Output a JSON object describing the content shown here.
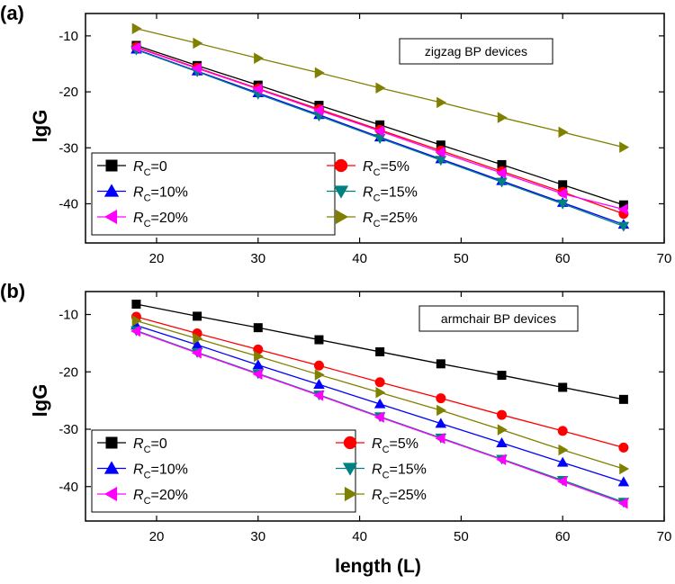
{
  "chart_data": [
    {
      "panel_label": "(a)",
      "type": "line",
      "annotation": "zigzag BP devices",
      "ylabel": "lgG",
      "xlabel": "",
      "xlim": [
        13,
        70
      ],
      "ylim": [
        -47,
        -6
      ],
      "xticks": [
        20,
        30,
        40,
        50,
        60,
        70
      ],
      "yticks": [
        -10,
        -20,
        -30,
        -40
      ],
      "x": [
        18,
        24,
        30,
        36,
        42,
        48,
        54,
        60,
        66
      ],
      "series": [
        {
          "name": "RC=0",
          "label_prefix": "R",
          "label_sub": "C",
          "label_value": "=0",
          "color": "#000000",
          "marker": "square",
          "values": [
            -11.7,
            -15.3,
            -18.8,
            -22.4,
            -25.9,
            -29.5,
            -33.0,
            -36.6,
            -40.2
          ]
        },
        {
          "name": "RC=5%",
          "label_prefix": "R",
          "label_sub": "C",
          "label_value": "=5%",
          "color": "#ff0000",
          "marker": "circle",
          "values": [
            -12.0,
            -15.7,
            -19.4,
            -23.1,
            -26.8,
            -30.5,
            -34.2,
            -37.9,
            -41.8
          ]
        },
        {
          "name": "RC=10%",
          "label_prefix": "R",
          "label_sub": "C",
          "label_value": "=10%",
          "color": "#0000ff",
          "marker": "triangle-up",
          "values": [
            -12.4,
            -16.3,
            -20.2,
            -24.1,
            -28.1,
            -32.0,
            -35.9,
            -39.8,
            -43.7
          ]
        },
        {
          "name": "RC=15%",
          "label_prefix": "R",
          "label_sub": "C",
          "label_value": "=15%",
          "color": "#008080",
          "marker": "triangle-down",
          "values": [
            -12.5,
            -16.4,
            -20.4,
            -24.3,
            -28.3,
            -32.2,
            -36.1,
            -40.0,
            -44.0
          ]
        },
        {
          "name": "RC=20%",
          "label_prefix": "R",
          "label_sub": "C",
          "label_value": "=20%",
          "color": "#ff00ff",
          "marker": "triangle-left",
          "values": [
            -12.1,
            -15.8,
            -19.5,
            -23.3,
            -27.0,
            -30.8,
            -34.5,
            -38.2,
            -41.0
          ]
        },
        {
          "name": "RC=25%",
          "label_prefix": "R",
          "label_sub": "C",
          "label_value": "=25%",
          "color": "#808000",
          "marker": "triangle-right",
          "values": [
            -8.7,
            -11.3,
            -14.0,
            -16.6,
            -19.3,
            -21.9,
            -24.6,
            -27.2,
            -29.9
          ]
        }
      ]
    },
    {
      "panel_label": "(b)",
      "type": "line",
      "annotation": "armchair BP devices",
      "ylabel": "lgG",
      "xlabel": "length (L)",
      "xlim": [
        13,
        70
      ],
      "ylim": [
        -46,
        -6
      ],
      "xticks": [
        20,
        30,
        40,
        50,
        60,
        70
      ],
      "yticks": [
        -10,
        -20,
        -30,
        -40
      ],
      "x": [
        18,
        24,
        30,
        36,
        42,
        48,
        54,
        60,
        66
      ],
      "series": [
        {
          "name": "RC=0",
          "label_prefix": "R",
          "label_sub": "C",
          "label_value": "=0",
          "color": "#000000",
          "marker": "square",
          "values": [
            -8.2,
            -10.3,
            -12.3,
            -14.4,
            -16.5,
            -18.6,
            -20.6,
            -22.7,
            -24.8
          ]
        },
        {
          "name": "RC=5%",
          "label_prefix": "R",
          "label_sub": "C",
          "label_value": "=5%",
          "color": "#ff0000",
          "marker": "circle",
          "values": [
            -10.4,
            -13.3,
            -16.1,
            -18.9,
            -21.8,
            -24.6,
            -27.5,
            -30.3,
            -33.2
          ]
        },
        {
          "name": "RC=10%",
          "label_prefix": "R",
          "label_sub": "C",
          "label_value": "=10%",
          "color": "#0000ff",
          "marker": "triangle-up",
          "values": [
            -11.9,
            -15.3,
            -18.8,
            -22.2,
            -25.6,
            -29.0,
            -32.4,
            -35.8,
            -39.2
          ]
        },
        {
          "name": "RC=15%",
          "label_prefix": "R",
          "label_sub": "C",
          "label_value": "=15%",
          "color": "#008080",
          "marker": "triangle-down",
          "values": [
            -12.8,
            -16.6,
            -20.3,
            -24.0,
            -27.8,
            -31.5,
            -35.2,
            -38.9,
            -42.7
          ]
        },
        {
          "name": "RC=20%",
          "label_prefix": "R",
          "label_sub": "C",
          "label_value": "=20%",
          "color": "#ff00ff",
          "marker": "triangle-left",
          "values": [
            -12.9,
            -16.7,
            -20.4,
            -24.1,
            -27.9,
            -31.6,
            -35.3,
            -39.1,
            -42.9
          ]
        },
        {
          "name": "RC=25%",
          "label_prefix": "R",
          "label_sub": "C",
          "label_value": "=25%",
          "color": "#808000",
          "marker": "triangle-right",
          "values": [
            -11.1,
            -14.2,
            -17.3,
            -20.5,
            -23.6,
            -26.7,
            -30.1,
            -33.6,
            -36.9
          ]
        }
      ]
    }
  ]
}
